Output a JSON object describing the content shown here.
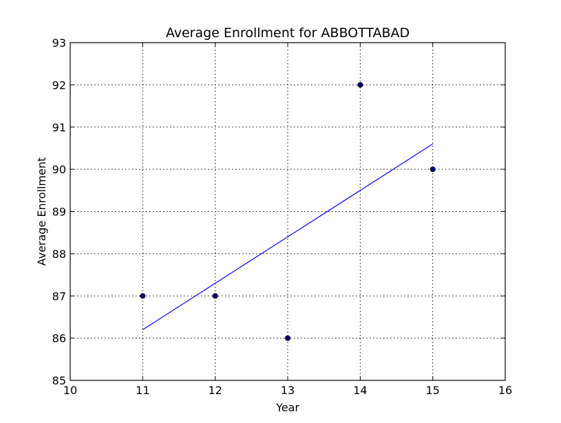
{
  "chart_data": {
    "type": "scatter",
    "title": "Average Enrollment for ABBOTTABAD",
    "xlabel": "Year",
    "ylabel": "Average Enrollment",
    "xlim": [
      10,
      16
    ],
    "ylim": [
      85,
      93
    ],
    "xticks": [
      10,
      11,
      12,
      13,
      14,
      15,
      16
    ],
    "yticks": [
      85,
      86,
      87,
      88,
      89,
      90,
      91,
      92,
      93
    ],
    "grid": true,
    "points": {
      "x": [
        11,
        12,
        13,
        14,
        15
      ],
      "y": [
        87,
        87,
        86,
        92,
        90
      ],
      "color": "#00008b"
    },
    "trend_line": {
      "x": [
        11,
        15
      ],
      "y": [
        86.2,
        90.6
      ],
      "color": "#0000ff"
    }
  }
}
